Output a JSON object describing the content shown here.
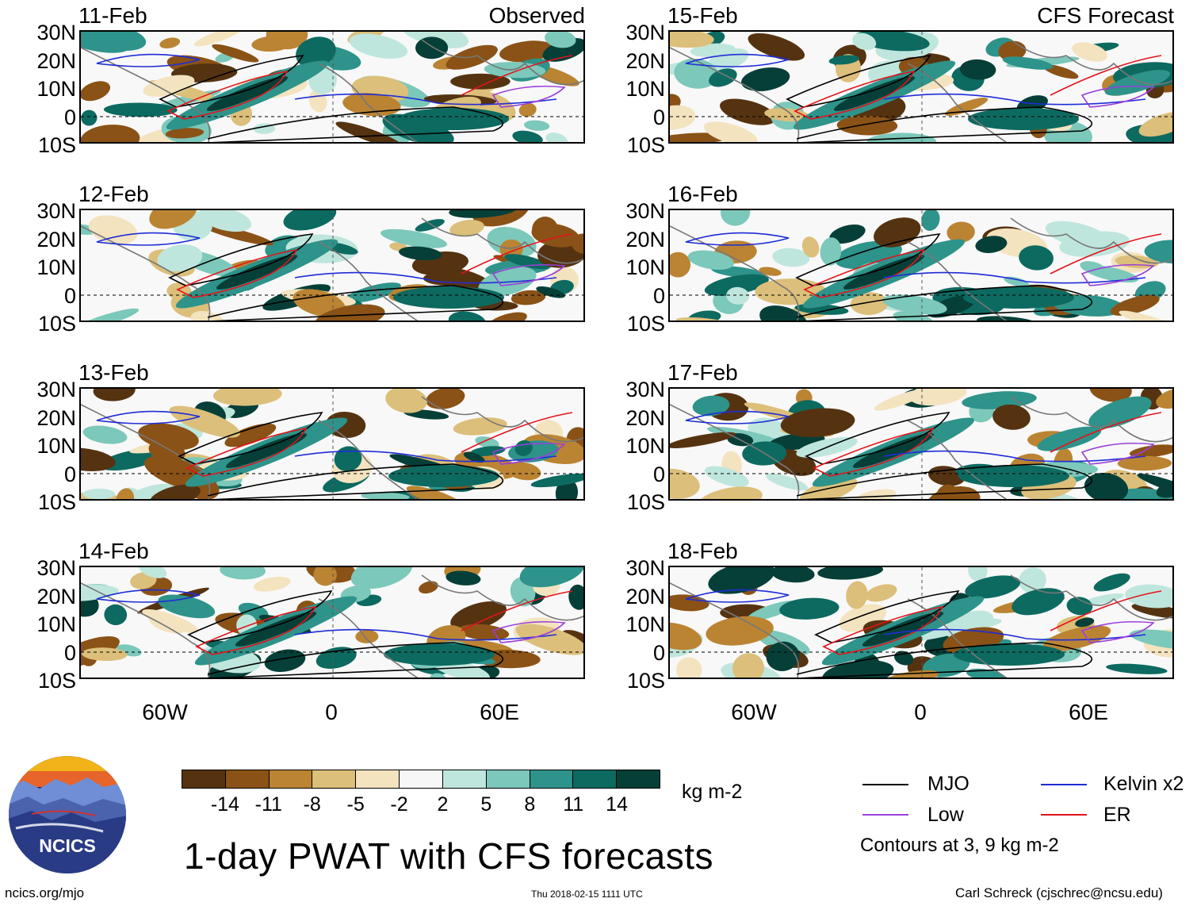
{
  "left_column_header": "Observed",
  "right_column_header": "CFS Forecast",
  "lat_labels": [
    "30N",
    "20N",
    "10N",
    "0",
    "10S"
  ],
  "lon_labels": [
    "60W",
    "0",
    "60E"
  ],
  "panels": [
    {
      "date": "11-Feb",
      "source": "Observed"
    },
    {
      "date": "12-Feb",
      "source": "Observed"
    },
    {
      "date": "13-Feb",
      "source": "Observed"
    },
    {
      "date": "14-Feb",
      "source": "Observed"
    },
    {
      "date": "15-Feb",
      "source": "CFS Forecast"
    },
    {
      "date": "16-Feb",
      "source": "CFS Forecast"
    },
    {
      "date": "17-Feb",
      "source": "CFS Forecast"
    },
    {
      "date": "18-Feb",
      "source": "CFS Forecast"
    }
  ],
  "colorbar": {
    "ticks": [
      "-14",
      "-11",
      "-8",
      "-5",
      "-2",
      "2",
      "5",
      "8",
      "11",
      "14"
    ],
    "colors": [
      "#553311",
      "#8a5216",
      "#bb8433",
      "#dcbf7a",
      "#f3e3bf",
      "#f7f7f7",
      "#bfe6dd",
      "#7cc8ba",
      "#2e938a",
      "#0d6a60",
      "#053f38"
    ],
    "units": "kg m-2"
  },
  "title": "1-day PWAT with CFS forecasts",
  "legend": {
    "items": [
      {
        "label": "MJO",
        "color": "#000000"
      },
      {
        "label": "Kelvin x2",
        "color": "#1f2dd6"
      },
      {
        "label": "Low",
        "color": "#9b3fd9"
      },
      {
        "label": "ER",
        "color": "#e3141b"
      }
    ],
    "contour_note": "Contours at 3, 9 kg m-2"
  },
  "logo_text": "NCICS",
  "footer": {
    "website": "ncics.org/mjo",
    "timestamp": "Thu 2018-02-15 1111 UTC",
    "credit": "Carl Schreck (cjschrec@ncsu.edu)"
  }
}
